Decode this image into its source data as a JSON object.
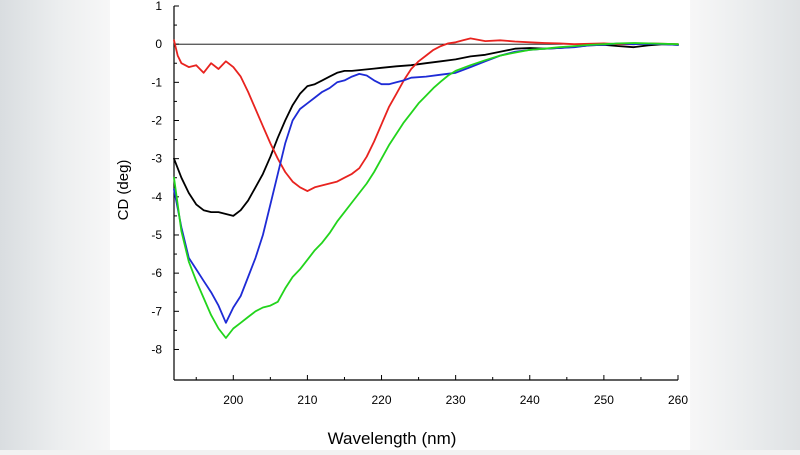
{
  "chart_data": {
    "type": "line",
    "title": "",
    "xlabel": "Wavelength (nm)",
    "ylabel": "CD (deg)",
    "xlim": [
      192,
      260
    ],
    "ylim": [
      -8.8,
      1
    ],
    "x_ticks": [
      200,
      210,
      220,
      230,
      240,
      250,
      260
    ],
    "y_ticks": [
      1,
      0,
      -1,
      -2,
      -3,
      -4,
      -5,
      -6,
      -7,
      -8
    ],
    "zero_line": true,
    "series": [
      {
        "name": "black",
        "color": "#000000",
        "x": [
          192,
          193,
          194,
          195,
          196,
          197,
          198,
          199,
          200,
          201,
          202,
          203,
          204,
          205,
          206,
          207,
          208,
          209,
          210,
          211,
          212,
          213,
          214,
          215,
          216,
          217,
          218,
          219,
          220,
          222,
          224,
          226,
          228,
          230,
          232,
          234,
          236,
          238,
          240,
          242,
          244,
          246,
          248,
          250,
          252,
          254,
          256,
          258,
          260
        ],
        "y": [
          -3.0,
          -3.5,
          -3.9,
          -4.2,
          -4.35,
          -4.4,
          -4.4,
          -4.45,
          -4.5,
          -4.35,
          -4.1,
          -3.75,
          -3.4,
          -2.95,
          -2.45,
          -2.0,
          -1.6,
          -1.3,
          -1.1,
          -1.05,
          -0.95,
          -0.85,
          -0.75,
          -0.7,
          -0.7,
          -0.68,
          -0.66,
          -0.64,
          -0.62,
          -0.58,
          -0.55,
          -0.5,
          -0.45,
          -0.4,
          -0.32,
          -0.28,
          -0.2,
          -0.12,
          -0.1,
          -0.12,
          -0.1,
          -0.07,
          -0.03,
          -0.02,
          -0.05,
          -0.08,
          -0.03,
          0.0,
          -0.02
        ]
      },
      {
        "name": "red",
        "color": "#e8231f",
        "x": [
          192,
          192.5,
          193,
          194,
          195,
          196,
          197,
          198,
          199,
          200,
          201,
          202,
          203,
          204,
          205,
          206,
          207,
          208,
          209,
          210,
          211,
          212,
          213,
          214,
          215,
          216,
          217,
          218,
          219,
          220,
          221,
          222,
          223,
          224,
          225,
          226,
          227,
          228,
          229,
          230,
          231,
          232,
          234,
          236,
          238,
          240,
          242,
          244,
          246,
          248,
          250,
          252,
          254,
          256,
          258,
          260
        ],
        "y": [
          0.1,
          -0.3,
          -0.5,
          -0.6,
          -0.55,
          -0.75,
          -0.5,
          -0.65,
          -0.45,
          -0.6,
          -0.85,
          -1.25,
          -1.7,
          -2.15,
          -2.6,
          -3.0,
          -3.35,
          -3.6,
          -3.75,
          -3.85,
          -3.75,
          -3.7,
          -3.65,
          -3.6,
          -3.5,
          -3.4,
          -3.25,
          -2.95,
          -2.55,
          -2.1,
          -1.65,
          -1.3,
          -0.95,
          -0.65,
          -0.45,
          -0.3,
          -0.15,
          -0.05,
          0.02,
          0.05,
          0.1,
          0.15,
          0.08,
          0.1,
          0.07,
          0.05,
          0.03,
          0.02,
          0.0,
          0.01,
          0.02,
          0.0,
          0.0,
          0.02,
          0.01,
          0.0
        ]
      },
      {
        "name": "blue",
        "color": "#1e2bd6",
        "x": [
          192,
          193,
          194,
          195,
          196,
          197,
          198,
          199,
          200,
          201,
          202,
          203,
          204,
          205,
          206,
          207,
          208,
          209,
          210,
          211,
          212,
          213,
          214,
          215,
          216,
          217,
          218,
          219,
          220,
          221,
          222,
          223,
          224,
          226,
          228,
          230,
          232,
          234,
          236,
          238,
          240,
          242,
          244,
          246,
          248,
          250,
          252,
          254,
          256,
          258,
          260
        ],
        "y": [
          -3.8,
          -4.8,
          -5.6,
          -5.9,
          -6.2,
          -6.5,
          -6.85,
          -7.3,
          -6.9,
          -6.6,
          -6.1,
          -5.6,
          -5.0,
          -4.2,
          -3.4,
          -2.6,
          -2.0,
          -1.7,
          -1.55,
          -1.4,
          -1.25,
          -1.15,
          -1.0,
          -0.95,
          -0.85,
          -0.78,
          -0.82,
          -0.95,
          -1.05,
          -1.05,
          -1.0,
          -0.95,
          -0.88,
          -0.85,
          -0.8,
          -0.75,
          -0.6,
          -0.45,
          -0.3,
          -0.2,
          -0.15,
          -0.12,
          -0.1,
          -0.08,
          -0.03,
          -0.02,
          0.02,
          0.0,
          0.01,
          0.0,
          -0.02
        ]
      },
      {
        "name": "green",
        "color": "#22d41c",
        "x": [
          192,
          193,
          194,
          195,
          196,
          197,
          198,
          199,
          200,
          201,
          202,
          203,
          204,
          205,
          206,
          207,
          208,
          209,
          210,
          211,
          212,
          213,
          214,
          215,
          216,
          217,
          218,
          219,
          220,
          221,
          222,
          223,
          224,
          225,
          226,
          227,
          228,
          229,
          230,
          232,
          234,
          236,
          238,
          240,
          242,
          244,
          246,
          248,
          250,
          252,
          254,
          256,
          258,
          260
        ],
        "y": [
          -3.5,
          -4.9,
          -5.7,
          -6.2,
          -6.65,
          -7.1,
          -7.45,
          -7.7,
          -7.45,
          -7.3,
          -7.15,
          -7.0,
          -6.9,
          -6.85,
          -6.75,
          -6.4,
          -6.1,
          -5.9,
          -5.65,
          -5.4,
          -5.2,
          -4.95,
          -4.65,
          -4.4,
          -4.15,
          -3.9,
          -3.65,
          -3.35,
          -3.0,
          -2.65,
          -2.35,
          -2.05,
          -1.8,
          -1.55,
          -1.35,
          -1.15,
          -0.98,
          -0.82,
          -0.7,
          -0.55,
          -0.42,
          -0.3,
          -0.22,
          -0.15,
          -0.12,
          -0.08,
          -0.05,
          -0.02,
          0.0,
          0.02,
          0.03,
          0.02,
          0.01,
          0.0
        ]
      }
    ]
  }
}
